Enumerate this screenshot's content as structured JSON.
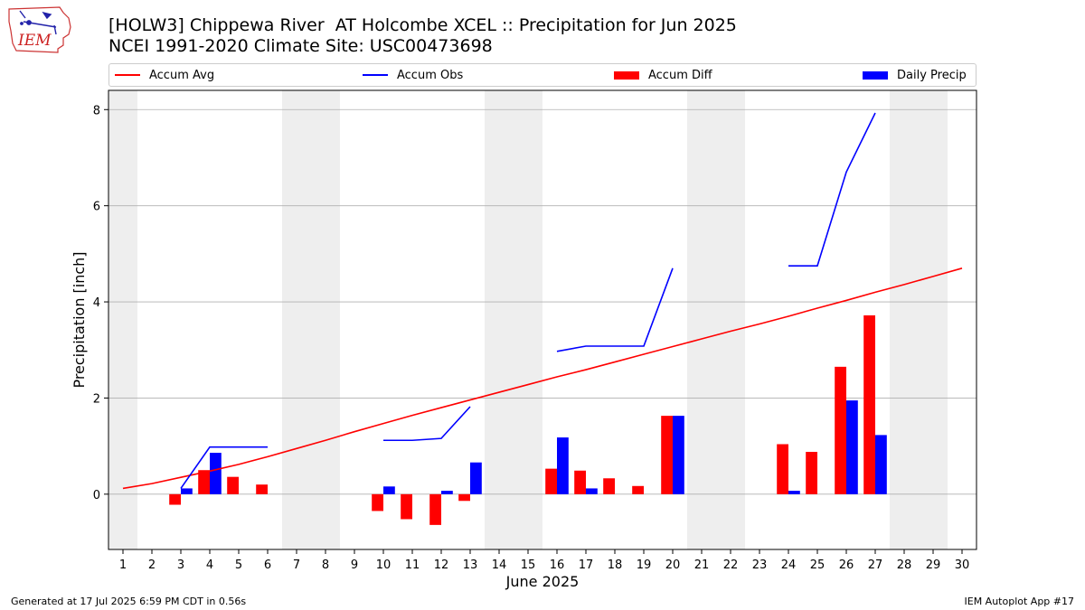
{
  "header": {
    "title_line1": "[HOLW3] Chippewa River  AT Holcombe XCEL :: Precipitation for Jun 2025",
    "title_line2": "NCEI 1991-2020 Climate Site: USC00473698",
    "logo_text": "IEM"
  },
  "footer": {
    "generated": "Generated at 17 Jul 2025 6:59 PM CDT in 0.56s",
    "app": "IEM Autoplot App #17"
  },
  "colors": {
    "accum_avg": "#ff0000",
    "accum_obs": "#0000ff",
    "accum_diff": "#ff0000",
    "daily_precip": "#0000ff",
    "weekend_shade": "#eeeeee",
    "grid": "#b0b0b0"
  },
  "chart_data": {
    "type": "bar",
    "xlabel": "June 2025",
    "ylabel": "Precipitation [inch]",
    "xlim": [
      0.5,
      30.5
    ],
    "ylim": [
      -1.15,
      8.4
    ],
    "x_ticks": [
      1,
      2,
      3,
      4,
      5,
      6,
      7,
      8,
      9,
      10,
      11,
      12,
      13,
      14,
      15,
      16,
      17,
      18,
      19,
      20,
      21,
      22,
      23,
      24,
      25,
      26,
      27,
      28,
      29,
      30
    ],
    "y_ticks": [
      0,
      2,
      4,
      6,
      8
    ],
    "grid": "horizontal",
    "legend_position": "top",
    "legend": [
      "Accum Avg",
      "Accum Obs",
      "Accum Diff",
      "Daily Precip"
    ],
    "weekend_shading_days": [
      1,
      7,
      8,
      14,
      15,
      21,
      22,
      28,
      29
    ],
    "series": [
      {
        "name": "Accum Avg",
        "kind": "line",
        "x": [
          1,
          2,
          3,
          4,
          5,
          6,
          7,
          8,
          9,
          10,
          11,
          12,
          13,
          14,
          15,
          16,
          17,
          18,
          19,
          20,
          21,
          22,
          23,
          24,
          25,
          26,
          27,
          28,
          29,
          30
        ],
        "values": [
          0.12,
          0.22,
          0.35,
          0.48,
          0.62,
          0.78,
          0.95,
          1.12,
          1.3,
          1.47,
          1.64,
          1.8,
          1.96,
          2.12,
          2.28,
          2.44,
          2.59,
          2.75,
          2.91,
          3.07,
          3.23,
          3.39,
          3.54,
          3.7,
          3.87,
          4.03,
          4.2,
          4.36,
          4.53,
          4.7
        ]
      },
      {
        "name": "Accum Obs",
        "kind": "line",
        "segments": [
          {
            "x": [
              3,
              4,
              5,
              6
            ],
            "values": [
              0.12,
              0.98,
              0.98,
              0.98
            ]
          },
          {
            "x": [
              10,
              11,
              12,
              13
            ],
            "values": [
              1.12,
              1.12,
              1.16,
              1.82
            ]
          },
          {
            "x": [
              16,
              17,
              18,
              19,
              20
            ],
            "values": [
              2.97,
              3.08,
              3.08,
              3.08,
              4.7
            ]
          },
          {
            "x": [
              24,
              25,
              26,
              27
            ],
            "values": [
              4.75,
              4.75,
              6.7,
              7.93
            ]
          }
        ]
      },
      {
        "name": "Accum Diff",
        "kind": "bar",
        "x": [
          3,
          4,
          5,
          6,
          10,
          11,
          12,
          13,
          16,
          17,
          18,
          19,
          20,
          24,
          25,
          26,
          27
        ],
        "values": [
          -0.22,
          0.5,
          0.36,
          0.2,
          -0.35,
          -0.52,
          -0.64,
          -0.14,
          0.53,
          0.49,
          0.33,
          0.17,
          1.63,
          1.04,
          0.88,
          2.65,
          3.72
        ]
      },
      {
        "name": "Daily Precip",
        "kind": "bar",
        "x": [
          3,
          4,
          10,
          12,
          13,
          16,
          17,
          20,
          24,
          26,
          27
        ],
        "values": [
          0.12,
          0.86,
          0.16,
          0.07,
          0.66,
          1.18,
          0.12,
          1.63,
          0.07,
          1.95,
          1.23
        ]
      }
    ]
  }
}
